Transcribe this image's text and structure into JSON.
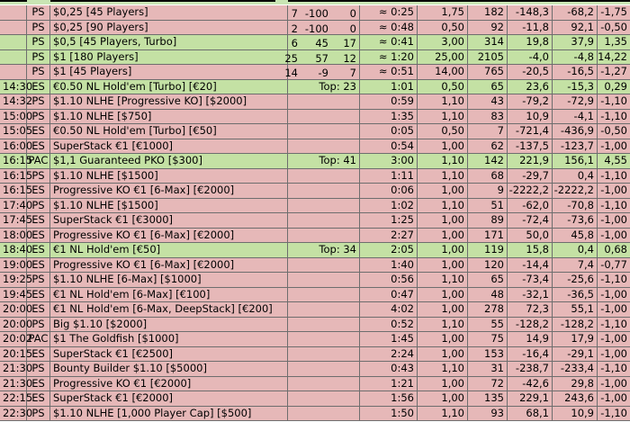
{
  "rows": [
    {
      "fill": "red",
      "time": "",
      "site": "PS",
      "name": "$0,25 [45 Players]",
      "n1": "7",
      "n2": "-100",
      "n3": "0",
      "top": "",
      "dur": "≈ 0:25",
      "buyin": "1,75",
      "players": "182",
      "v1": "-148,3",
      "v2": "-68,2",
      "v3": "-1,75"
    },
    {
      "fill": "red",
      "time": "",
      "site": "PS",
      "name": "$0,25 [90 Players]",
      "n1": "2",
      "n2": "-100",
      "n3": "0",
      "top": "",
      "dur": "≈ 0:48",
      "buyin": "0,50",
      "players": "92",
      "v1": "-11,8",
      "v2": "92,1",
      "v3": "-0,50"
    },
    {
      "fill": "green",
      "time": "",
      "site": "PS",
      "name": "$0,5 [45 Players, Turbo]",
      "n1": "6",
      "n2": "45",
      "n3": "17",
      "top": "",
      "dur": "≈ 0:41",
      "buyin": "3,00",
      "players": "314",
      "v1": "19,8",
      "v2": "37,9",
      "v3": "1,35"
    },
    {
      "fill": "green",
      "time": "",
      "site": "PS",
      "name": "$1 [180 Players]",
      "n1": "25",
      "n2": "57",
      "n3": "12",
      "top": "",
      "dur": "≈ 1:20",
      "buyin": "25,00",
      "players": "2105",
      "v1": "-4,0",
      "v2": "-4,8",
      "v3": "14,22"
    },
    {
      "fill": "red",
      "time": "",
      "site": "PS",
      "name": "$1 [45 Players]",
      "n1": "14",
      "n2": "-9",
      "n3": "7",
      "top": "",
      "dur": "≈ 0:51",
      "buyin": "14,00",
      "players": "765",
      "v1": "-20,5",
      "v2": "-16,5",
      "v3": "-1,27"
    },
    {
      "fill": "green",
      "time": "14:30",
      "site": "ES",
      "name": "€0.50 NL Hold'em [Turbo]  [€20]",
      "n1": "",
      "n2": "",
      "n3": "",
      "top": "Top: 23",
      "dur": "1:01",
      "buyin": "0,50",
      "players": "65",
      "v1": "23,6",
      "v2": "-15,3",
      "v3": "0,29"
    },
    {
      "fill": "red",
      "time": "14:32",
      "site": "PS",
      "name": "$1.10 NLHE [Progressive KO]  [$2000]",
      "n1": "",
      "n2": "",
      "n3": "",
      "top": "",
      "dur": "0:59",
      "buyin": "1,10",
      "players": "43",
      "v1": "-79,2",
      "v2": "-72,9",
      "v3": "-1,10"
    },
    {
      "fill": "red",
      "time": "15:00",
      "site": "PS",
      "name": "$1.10 NLHE [$750]",
      "n1": "",
      "n2": "",
      "n3": "",
      "top": "",
      "dur": "1:35",
      "buyin": "1,10",
      "players": "83",
      "v1": "10,9",
      "v2": "-4,1",
      "v3": "-1,10"
    },
    {
      "fill": "red",
      "time": "15:05",
      "site": "ES",
      "name": "€0.50 NL Hold'em [Turbo]  [€50]",
      "n1": "",
      "n2": "",
      "n3": "",
      "top": "",
      "dur": "0:05",
      "buyin": "0,50",
      "players": "7",
      "v1": "-721,4",
      "v2": "-436,9",
      "v3": "-0,50"
    },
    {
      "fill": "red",
      "time": "16:00",
      "site": "ES",
      "name": "SuperStack €1  [€1000]",
      "n1": "",
      "n2": "",
      "n3": "",
      "top": "",
      "dur": "0:54",
      "buyin": "1,00",
      "players": "62",
      "v1": "-137,5",
      "v2": "-123,7",
      "v3": "-1,00"
    },
    {
      "fill": "green",
      "time": "16:15",
      "site": "PAC",
      "name": "$1,1 Guaranteed PKO [$300]",
      "n1": "",
      "n2": "",
      "n3": "",
      "top": "Top: 41",
      "dur": "3:00",
      "buyin": "1,10",
      "players": "142",
      "v1": "221,9",
      "v2": "156,1",
      "v3": "4,55"
    },
    {
      "fill": "red",
      "time": "16:15",
      "site": "PS",
      "name": "$1.10 NLHE [$1500]",
      "n1": "",
      "n2": "",
      "n3": "",
      "top": "",
      "dur": "1:11",
      "buyin": "1,10",
      "players": "68",
      "v1": "-29,7",
      "v2": "0,4",
      "v3": "-1,10"
    },
    {
      "fill": "red",
      "time": "16:15",
      "site": "ES",
      "name": "Progressive KO €1 [6-Max]  [€2000]",
      "n1": "",
      "n2": "",
      "n3": "",
      "top": "",
      "dur": "0:06",
      "buyin": "1,00",
      "players": "9",
      "v1": "-2222,2",
      "v2": "-2222,2",
      "v3": "-1,00"
    },
    {
      "fill": "red",
      "time": "17:40",
      "site": "PS",
      "name": "$1.10 NLHE [$1500]",
      "n1": "",
      "n2": "",
      "n3": "",
      "top": "",
      "dur": "1:02",
      "buyin": "1,10",
      "players": "51",
      "v1": "-62,0",
      "v2": "-70,8",
      "v3": "-1,10"
    },
    {
      "fill": "red",
      "time": "17:45",
      "site": "ES",
      "name": "SuperStack €1  [€3000]",
      "n1": "",
      "n2": "",
      "n3": "",
      "top": "",
      "dur": "1:25",
      "buyin": "1,00",
      "players": "89",
      "v1": "-72,4",
      "v2": "-73,6",
      "v3": "-1,00"
    },
    {
      "fill": "red",
      "time": "18:00",
      "site": "ES",
      "name": "Progressive KO €1 [6-Max]  [€2000]",
      "n1": "",
      "n2": "",
      "n3": "",
      "top": "",
      "dur": "2:27",
      "buyin": "1,00",
      "players": "171",
      "v1": "50,0",
      "v2": "45,8",
      "v3": "-1,00"
    },
    {
      "fill": "green",
      "time": "18:40",
      "site": "ES",
      "name": "€1 NL Hold'em  [€50]",
      "n1": "",
      "n2": "",
      "n3": "",
      "top": "Top: 34",
      "dur": "2:05",
      "buyin": "1,00",
      "players": "119",
      "v1": "15,8",
      "v2": "0,4",
      "v3": "0,68"
    },
    {
      "fill": "red",
      "time": "19:00",
      "site": "ES",
      "name": "Progressive KO €1 [6-Max]  [€2000]",
      "n1": "",
      "n2": "",
      "n3": "",
      "top": "",
      "dur": "1:40",
      "buyin": "1,00",
      "players": "120",
      "v1": "-14,4",
      "v2": "7,4",
      "v3": "-0,77"
    },
    {
      "fill": "red",
      "time": "19:25",
      "site": "PS",
      "name": "$1.10 NLHE [6-Max]  [$1000]",
      "n1": "",
      "n2": "",
      "n3": "",
      "top": "",
      "dur": "0:56",
      "buyin": "1,10",
      "players": "65",
      "v1": "-73,4",
      "v2": "-25,6",
      "v3": "-1,10"
    },
    {
      "fill": "red",
      "time": "19:45",
      "site": "ES",
      "name": "€1 NL Hold'em [6-Max]  [€100]",
      "n1": "",
      "n2": "",
      "n3": "",
      "top": "",
      "dur": "0:47",
      "buyin": "1,00",
      "players": "48",
      "v1": "-32,1",
      "v2": "-36,5",
      "v3": "-1,00"
    },
    {
      "fill": "red",
      "time": "20:00",
      "site": "ES",
      "name": "€1 NL Hold'em [6-Max, DeepStack]  [€200]",
      "n1": "",
      "n2": "",
      "n3": "",
      "top": "",
      "dur": "4:02",
      "buyin": "1,00",
      "players": "278",
      "v1": "72,3",
      "v2": "55,1",
      "v3": "-1,00"
    },
    {
      "fill": "red",
      "time": "20:00",
      "site": "PS",
      "name": "Big $1.10 [$2000]",
      "n1": "",
      "n2": "",
      "n3": "",
      "top": "",
      "dur": "0:52",
      "buyin": "1,10",
      "players": "55",
      "v1": "-128,2",
      "v2": "-128,2",
      "v3": "-1,10"
    },
    {
      "fill": "red",
      "time": "20:02",
      "site": "PAC",
      "name": "$1 The Goldfish [$1000]",
      "n1": "",
      "n2": "",
      "n3": "",
      "top": "",
      "dur": "1:45",
      "buyin": "1,00",
      "players": "75",
      "v1": "14,9",
      "v2": "17,9",
      "v3": "-1,00"
    },
    {
      "fill": "red",
      "time": "20:15",
      "site": "ES",
      "name": "SuperStack €1  [€2500]",
      "n1": "",
      "n2": "",
      "n3": "",
      "top": "",
      "dur": "2:24",
      "buyin": "1,00",
      "players": "153",
      "v1": "-16,4",
      "v2": "-29,1",
      "v3": "-1,00"
    },
    {
      "fill": "red",
      "time": "21:30",
      "site": "PS",
      "name": "Bounty Builder $1.10 [$5000]",
      "n1": "",
      "n2": "",
      "n3": "",
      "top": "",
      "dur": "0:43",
      "buyin": "1,10",
      "players": "31",
      "v1": "-238,7",
      "v2": "-233,4",
      "v3": "-1,10"
    },
    {
      "fill": "red",
      "time": "21:30",
      "site": "ES",
      "name": "Progressive KO €1  [€2000]",
      "n1": "",
      "n2": "",
      "n3": "",
      "top": "",
      "dur": "1:21",
      "buyin": "1,00",
      "players": "72",
      "v1": "-42,6",
      "v2": "29,8",
      "v3": "-1,00"
    },
    {
      "fill": "red",
      "time": "22:15",
      "site": "ES",
      "name": "SuperStack €1  [€2000]",
      "n1": "",
      "n2": "",
      "n3": "",
      "top": "",
      "dur": "1:56",
      "buyin": "1,00",
      "players": "135",
      "v1": "229,1",
      "v2": "243,6",
      "v3": "-1,00"
    },
    {
      "fill": "red",
      "time": "22:30",
      "site": "PS",
      "name": "$1.10 NLHE [1,000 Player Cap]  [$500]",
      "n1": "",
      "n2": "",
      "n3": "",
      "top": "",
      "dur": "1:50",
      "buyin": "1,10",
      "players": "93",
      "v1": "68,1",
      "v2": "10,9",
      "v3": "-1,10"
    }
  ]
}
